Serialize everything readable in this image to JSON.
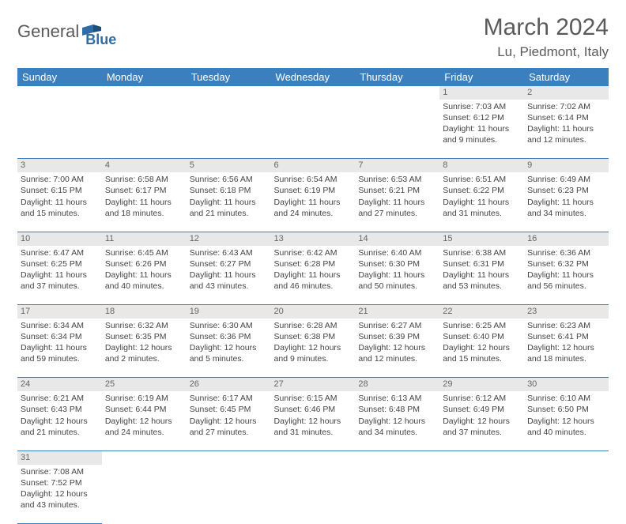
{
  "logo": {
    "leading": "General",
    "trailing": "Blue"
  },
  "title": "March 2024",
  "location": "Lu, Piedmont, Italy",
  "colors": {
    "header_bg": "#3b7fbf",
    "header_fg": "#ffffff",
    "daynum_bg": "#e8e8e8",
    "text": "#444444"
  },
  "day_labels": [
    "Sunday",
    "Monday",
    "Tuesday",
    "Wednesday",
    "Thursday",
    "Friday",
    "Saturday"
  ],
  "weeks": [
    [
      null,
      null,
      null,
      null,
      null,
      {
        "n": "1",
        "sunrise": "Sunrise: 7:03 AM",
        "sunset": "Sunset: 6:12 PM",
        "daylight": "Daylight: 11 hours and 9 minutes."
      },
      {
        "n": "2",
        "sunrise": "Sunrise: 7:02 AM",
        "sunset": "Sunset: 6:14 PM",
        "daylight": "Daylight: 11 hours and 12 minutes."
      }
    ],
    [
      {
        "n": "3",
        "sunrise": "Sunrise: 7:00 AM",
        "sunset": "Sunset: 6:15 PM",
        "daylight": "Daylight: 11 hours and 15 minutes."
      },
      {
        "n": "4",
        "sunrise": "Sunrise: 6:58 AM",
        "sunset": "Sunset: 6:17 PM",
        "daylight": "Daylight: 11 hours and 18 minutes."
      },
      {
        "n": "5",
        "sunrise": "Sunrise: 6:56 AM",
        "sunset": "Sunset: 6:18 PM",
        "daylight": "Daylight: 11 hours and 21 minutes."
      },
      {
        "n": "6",
        "sunrise": "Sunrise: 6:54 AM",
        "sunset": "Sunset: 6:19 PM",
        "daylight": "Daylight: 11 hours and 24 minutes."
      },
      {
        "n": "7",
        "sunrise": "Sunrise: 6:53 AM",
        "sunset": "Sunset: 6:21 PM",
        "daylight": "Daylight: 11 hours and 27 minutes."
      },
      {
        "n": "8",
        "sunrise": "Sunrise: 6:51 AM",
        "sunset": "Sunset: 6:22 PM",
        "daylight": "Daylight: 11 hours and 31 minutes."
      },
      {
        "n": "9",
        "sunrise": "Sunrise: 6:49 AM",
        "sunset": "Sunset: 6:23 PM",
        "daylight": "Daylight: 11 hours and 34 minutes."
      }
    ],
    [
      {
        "n": "10",
        "sunrise": "Sunrise: 6:47 AM",
        "sunset": "Sunset: 6:25 PM",
        "daylight": "Daylight: 11 hours and 37 minutes."
      },
      {
        "n": "11",
        "sunrise": "Sunrise: 6:45 AM",
        "sunset": "Sunset: 6:26 PM",
        "daylight": "Daylight: 11 hours and 40 minutes."
      },
      {
        "n": "12",
        "sunrise": "Sunrise: 6:43 AM",
        "sunset": "Sunset: 6:27 PM",
        "daylight": "Daylight: 11 hours and 43 minutes."
      },
      {
        "n": "13",
        "sunrise": "Sunrise: 6:42 AM",
        "sunset": "Sunset: 6:28 PM",
        "daylight": "Daylight: 11 hours and 46 minutes."
      },
      {
        "n": "14",
        "sunrise": "Sunrise: 6:40 AM",
        "sunset": "Sunset: 6:30 PM",
        "daylight": "Daylight: 11 hours and 50 minutes."
      },
      {
        "n": "15",
        "sunrise": "Sunrise: 6:38 AM",
        "sunset": "Sunset: 6:31 PM",
        "daylight": "Daylight: 11 hours and 53 minutes."
      },
      {
        "n": "16",
        "sunrise": "Sunrise: 6:36 AM",
        "sunset": "Sunset: 6:32 PM",
        "daylight": "Daylight: 11 hours and 56 minutes."
      }
    ],
    [
      {
        "n": "17",
        "sunrise": "Sunrise: 6:34 AM",
        "sunset": "Sunset: 6:34 PM",
        "daylight": "Daylight: 11 hours and 59 minutes."
      },
      {
        "n": "18",
        "sunrise": "Sunrise: 6:32 AM",
        "sunset": "Sunset: 6:35 PM",
        "daylight": "Daylight: 12 hours and 2 minutes."
      },
      {
        "n": "19",
        "sunrise": "Sunrise: 6:30 AM",
        "sunset": "Sunset: 6:36 PM",
        "daylight": "Daylight: 12 hours and 5 minutes."
      },
      {
        "n": "20",
        "sunrise": "Sunrise: 6:28 AM",
        "sunset": "Sunset: 6:38 PM",
        "daylight": "Daylight: 12 hours and 9 minutes."
      },
      {
        "n": "21",
        "sunrise": "Sunrise: 6:27 AM",
        "sunset": "Sunset: 6:39 PM",
        "daylight": "Daylight: 12 hours and 12 minutes."
      },
      {
        "n": "22",
        "sunrise": "Sunrise: 6:25 AM",
        "sunset": "Sunset: 6:40 PM",
        "daylight": "Daylight: 12 hours and 15 minutes."
      },
      {
        "n": "23",
        "sunrise": "Sunrise: 6:23 AM",
        "sunset": "Sunset: 6:41 PM",
        "daylight": "Daylight: 12 hours and 18 minutes."
      }
    ],
    [
      {
        "n": "24",
        "sunrise": "Sunrise: 6:21 AM",
        "sunset": "Sunset: 6:43 PM",
        "daylight": "Daylight: 12 hours and 21 minutes."
      },
      {
        "n": "25",
        "sunrise": "Sunrise: 6:19 AM",
        "sunset": "Sunset: 6:44 PM",
        "daylight": "Daylight: 12 hours and 24 minutes."
      },
      {
        "n": "26",
        "sunrise": "Sunrise: 6:17 AM",
        "sunset": "Sunset: 6:45 PM",
        "daylight": "Daylight: 12 hours and 27 minutes."
      },
      {
        "n": "27",
        "sunrise": "Sunrise: 6:15 AM",
        "sunset": "Sunset: 6:46 PM",
        "daylight": "Daylight: 12 hours and 31 minutes."
      },
      {
        "n": "28",
        "sunrise": "Sunrise: 6:13 AM",
        "sunset": "Sunset: 6:48 PM",
        "daylight": "Daylight: 12 hours and 34 minutes."
      },
      {
        "n": "29",
        "sunrise": "Sunrise: 6:12 AM",
        "sunset": "Sunset: 6:49 PM",
        "daylight": "Daylight: 12 hours and 37 minutes."
      },
      {
        "n": "30",
        "sunrise": "Sunrise: 6:10 AM",
        "sunset": "Sunset: 6:50 PM",
        "daylight": "Daylight: 12 hours and 40 minutes."
      }
    ],
    [
      {
        "n": "31",
        "sunrise": "Sunrise: 7:08 AM",
        "sunset": "Sunset: 7:52 PM",
        "daylight": "Daylight: 12 hours and 43 minutes."
      },
      null,
      null,
      null,
      null,
      null,
      null
    ]
  ]
}
